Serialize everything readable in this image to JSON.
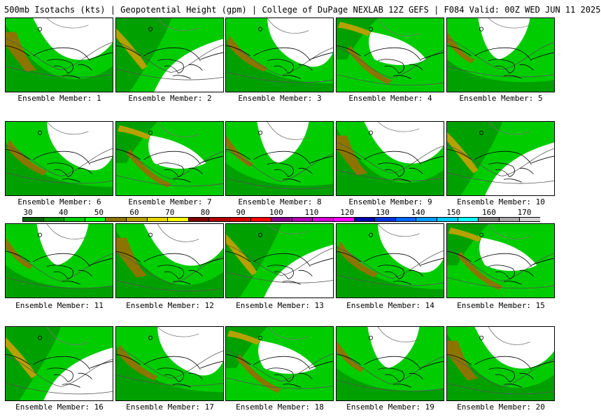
{
  "header": {
    "title": "500mb Isotachs (kts) | Geopotential Height (gpm) | College of DuPage NEXLAB   12Z GEFS | F084 Valid: 00Z WED JUN 11 2025"
  },
  "colorbar": {
    "labels": [
      "30",
      "40",
      "50",
      "60",
      "70",
      "80",
      "90",
      "100",
      "110",
      "120",
      "130",
      "140",
      "150",
      "160",
      "170"
    ],
    "colors": [
      "#006400",
      "#009600",
      "#00cc00",
      "#00ff00",
      "#8b7500",
      "#b5a100",
      "#e6d400",
      "#ffff00",
      "#800000",
      "#b00000",
      "#d60000",
      "#ff0000",
      "#8b008b",
      "#b000b0",
      "#d200d2",
      "#ff00ff",
      "#0000aa",
      "#0033dd",
      "#0066ff",
      "#0099ff",
      "#00ccff",
      "#00ffff",
      "#808080",
      "#a9a9a9",
      "#d3d3d3"
    ]
  },
  "members": [
    {
      "label": "Ensemble Member: 1"
    },
    {
      "label": "Ensemble Member: 2"
    },
    {
      "label": "Ensemble Member: 3"
    },
    {
      "label": "Ensemble Member: 4"
    },
    {
      "label": "Ensemble Member: 5"
    },
    {
      "label": "Ensemble Member: 6"
    },
    {
      "label": "Ensemble Member: 7"
    },
    {
      "label": "Ensemble Member: 8"
    },
    {
      "label": "Ensemble Member: 9"
    },
    {
      "label": "Ensemble Member: 10"
    },
    {
      "label": "Ensemble Member: 11"
    },
    {
      "label": "Ensemble Member: 12"
    },
    {
      "label": "Ensemble Member: 13"
    },
    {
      "label": "Ensemble Member: 14"
    },
    {
      "label": "Ensemble Member: 15"
    },
    {
      "label": "Ensemble Member: 16"
    },
    {
      "label": "Ensemble Member: 17"
    },
    {
      "label": "Ensemble Member: 18"
    },
    {
      "label": "Ensemble Member: 19"
    },
    {
      "label": "Ensemble Member: 20"
    }
  ]
}
